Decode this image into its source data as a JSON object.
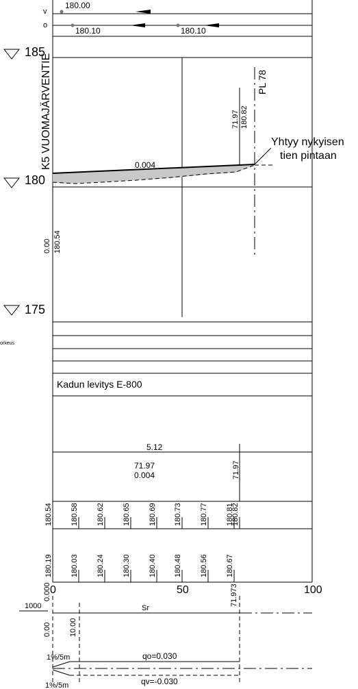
{
  "top": {
    "v_label": "v",
    "o_label": "o",
    "v_value": "180.00",
    "o_value_1": "180.10",
    "o_value_2": "180.10"
  },
  "elevations": {
    "e185": "185",
    "e180": "180",
    "e175": "175"
  },
  "profile": {
    "road_name": "K5 VUOMAJÄRVENTIE",
    "pl_label": "PL 78",
    "note_line1": "Yhtyy nykyisen",
    "note_line2": "tien pintaan",
    "slope_top": "0.004",
    "end_station": "71.97",
    "end_height": "180.82",
    "start_station": "0.00",
    "start_height": "180.54"
  },
  "bands": {
    "side_label": "orkeus",
    "paving": "Kadun levitys E-800",
    "length": "5.12",
    "station_mid": "71.97",
    "slope_mid": "0.004",
    "station_right": "71.97"
  },
  "design_heights": [
    "180.54",
    "180.58",
    "180.62",
    "180.65",
    "180.69",
    "180.73",
    "180.77",
    "180.81",
    "180.82"
  ],
  "ground_heights": [
    "180.19",
    "180.03",
    "180.24",
    "180.30",
    "180.40",
    "180.48",
    "180.56",
    "180.67"
  ],
  "stations": {
    "s0_text": "0.000",
    "s0": "0",
    "s50": "50",
    "s100": "100",
    "s_end": "71.973"
  },
  "curve": {
    "radius": "1000",
    "sr": "Sr",
    "v1": "0.00",
    "v2": "10.00"
  },
  "crossfall": {
    "left_top": "1%/5m",
    "left_bottom": "1%/5m",
    "qo": "qo=0.030",
    "qv": "qv=-0.030"
  }
}
